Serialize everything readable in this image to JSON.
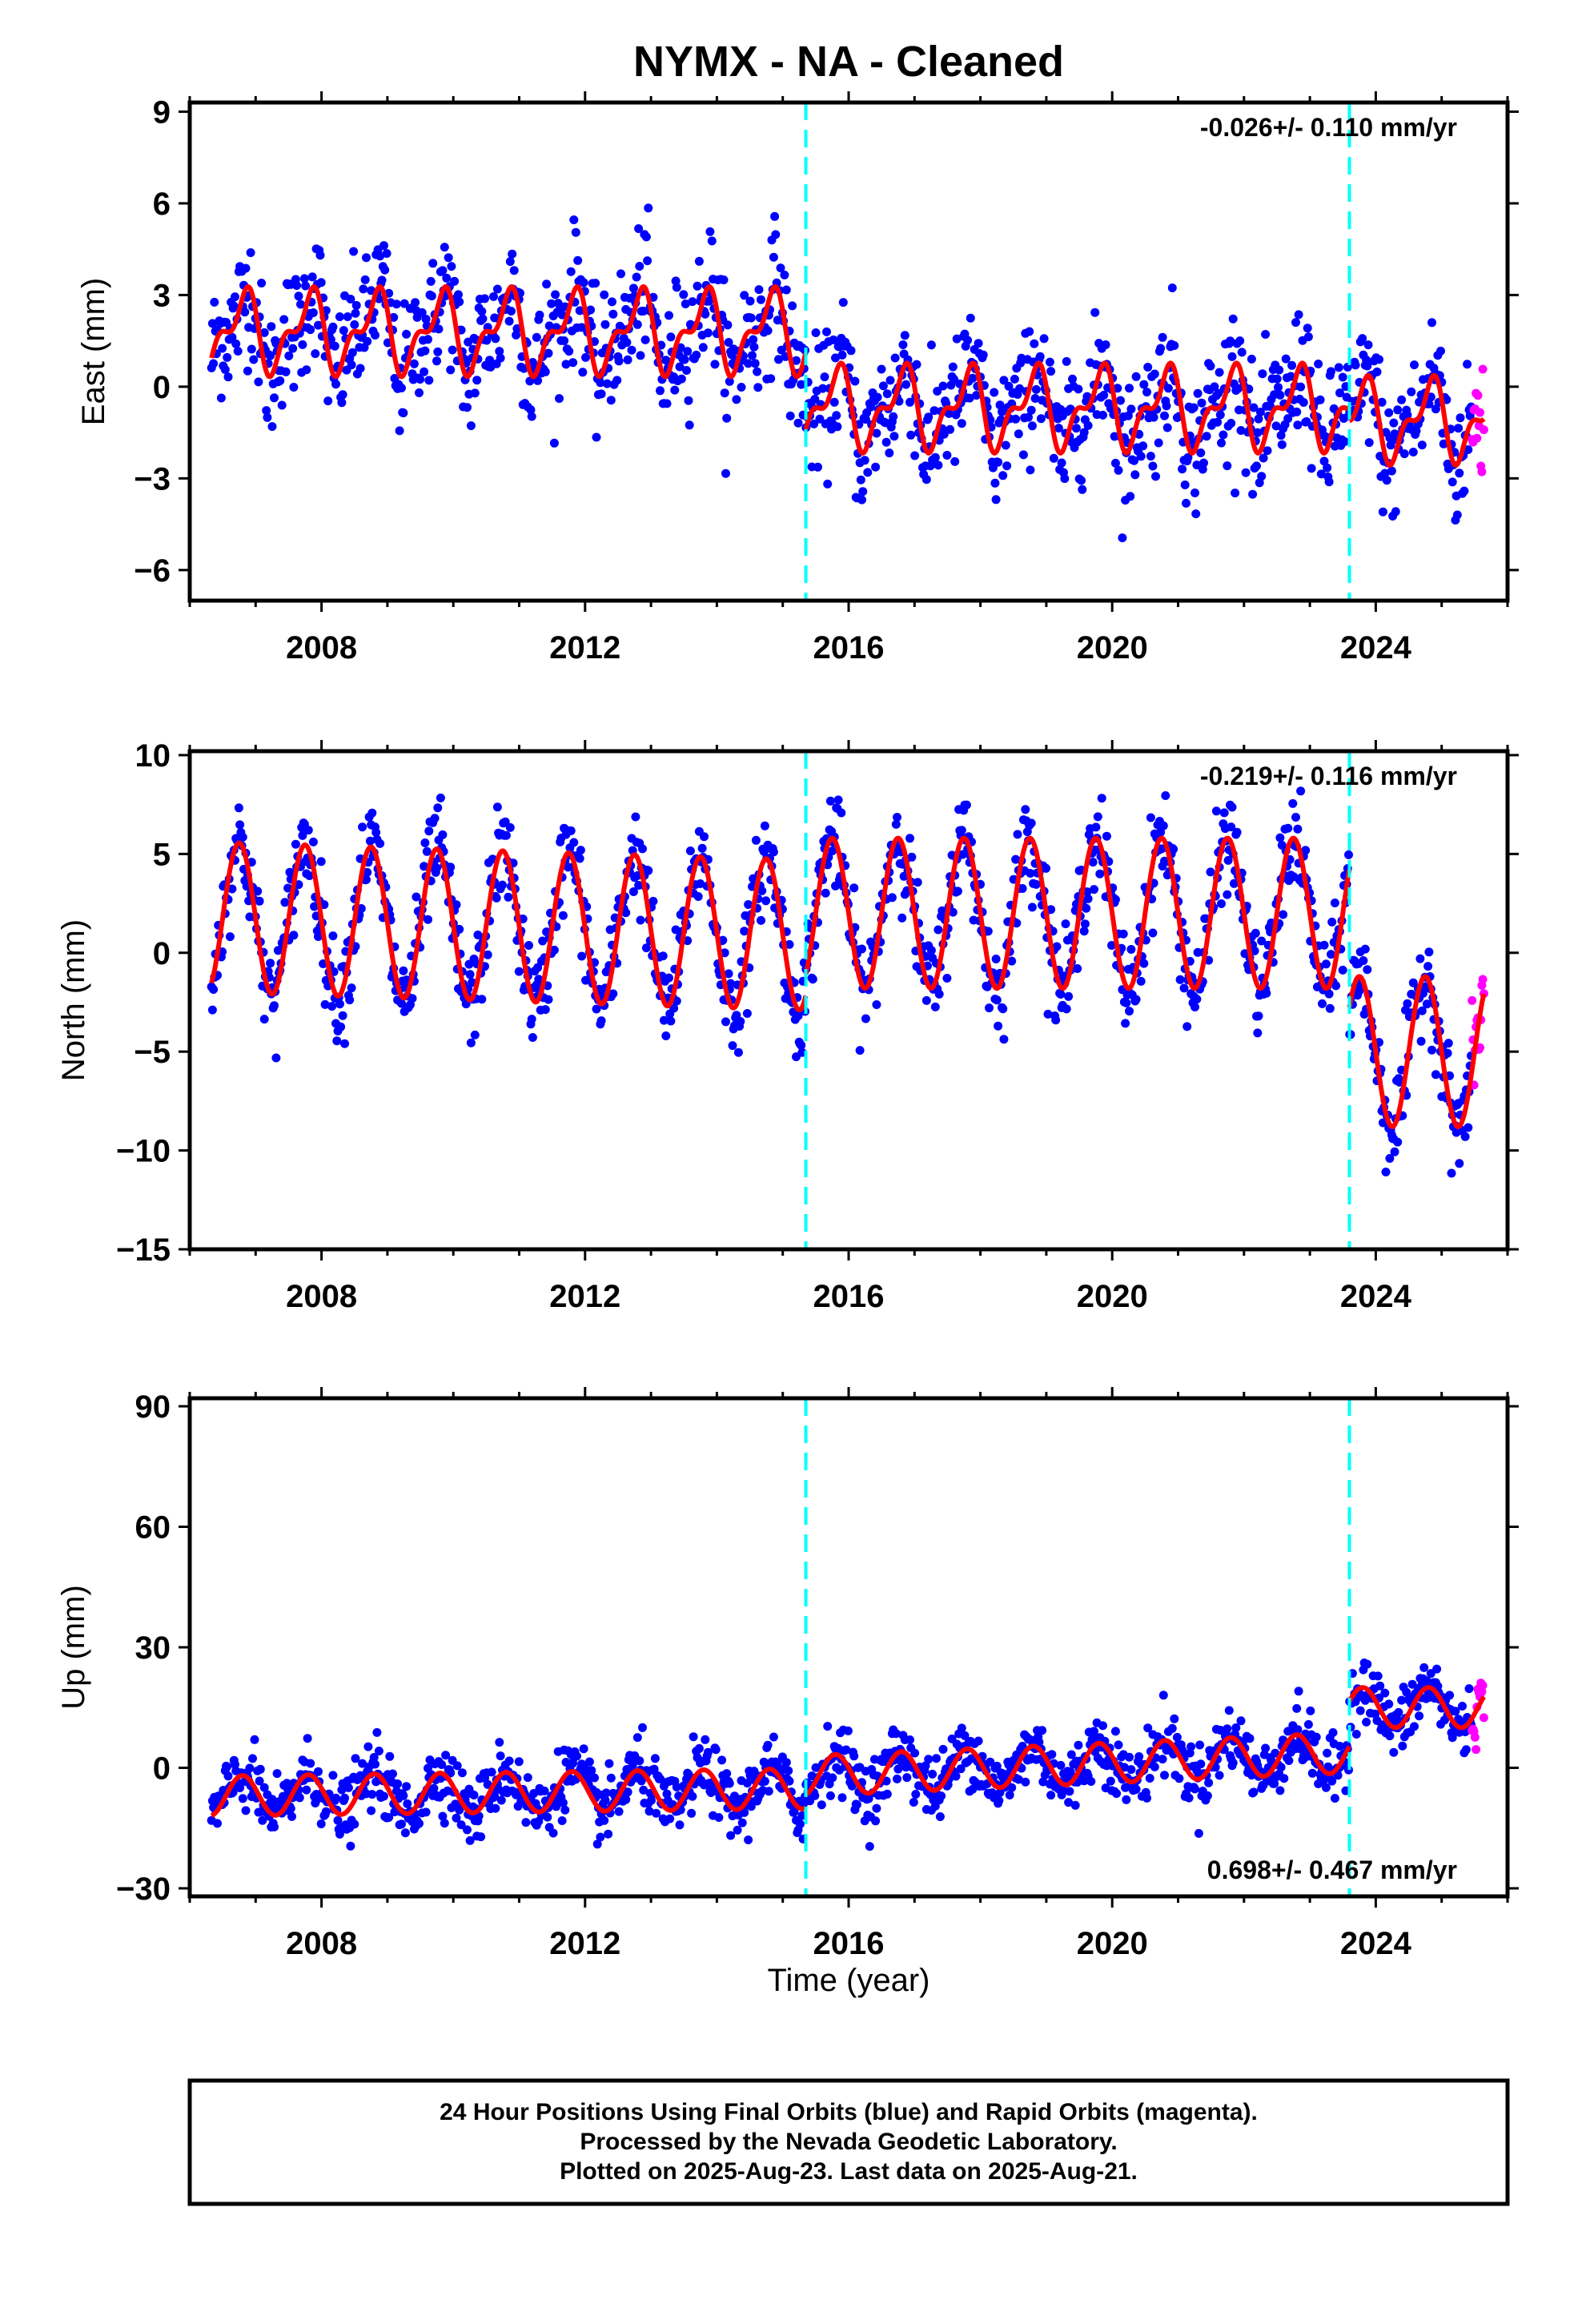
{
  "title": "NYMX  - NA - Cleaned",
  "xlabel": "Time (year)",
  "footer": {
    "line1": "24 Hour Positions Using Final Orbits (blue) and Rapid Orbits (magenta).",
    "line2": "Processed by the Nevada Geodetic Laboratory.",
    "line3": "Plotted on 2025-Aug-23. Last data on 2025-Aug-21."
  },
  "colors": {
    "final_orbits": "#0000ff",
    "rapid_orbits": "#ff00ff",
    "model": "#ff0000",
    "steps": "#00ffff"
  },
  "chart_data": [
    {
      "type": "scatter",
      "ylabel": "East (mm)",
      "rate_text": "-0.026+/- 0.110 mm/yr",
      "rate_position": "top-right",
      "xlim": [
        2006.0,
        2026.0
      ],
      "ylim": [
        -7,
        9.3
      ],
      "x_ticks": [
        2008,
        2012,
        2016,
        2020,
        2024
      ],
      "y_ticks": [
        9,
        6,
        3,
        0,
        -3,
        -6
      ],
      "y_tick_labels": [
        "9",
        "6",
        "3",
        "0",
        "−3",
        "−6"
      ],
      "steps": [
        2015.35,
        2023.6
      ],
      "data_span": [
        2006.33,
        2025.64
      ],
      "rapid_span": [
        2025.45,
        2025.64
      ],
      "model": {
        "segments": [
          {
            "from": 2006.33,
            "to": 2015.35,
            "offset": 1.8
          },
          {
            "from": 2015.35,
            "to": 2023.6,
            "offset": -0.7
          },
          {
            "from": 2023.6,
            "to": 2025.64,
            "offset": -1.1
          }
        ],
        "annual_amp": 1.1,
        "annual_phase": 0.55,
        "semiannual_amp": 0.6,
        "semiannual_phase": 0.3,
        "scatter_sd": 1.05
      }
    },
    {
      "type": "scatter",
      "ylabel": "North (mm)",
      "rate_text": "-0.219+/- 0.116 mm/yr",
      "rate_position": "top-right",
      "xlim": [
        2006.0,
        2026.0
      ],
      "ylim": [
        -15,
        10.2
      ],
      "x_ticks": [
        2008,
        2012,
        2016,
        2020,
        2024
      ],
      "y_ticks": [
        10,
        5,
        0,
        -5,
        -10,
        -15
      ],
      "y_tick_labels": [
        "10",
        "5",
        "0",
        "−5",
        "−10",
        "−15"
      ],
      "steps": [
        2015.35,
        2023.6
      ],
      "data_span": [
        2006.33,
        2025.64
      ],
      "rapid_span": [
        2025.45,
        2025.64
      ],
      "model": {
        "segments": [
          {
            "from": 2006.33,
            "to": 2015.35,
            "offset": 1.8,
            "slope": -0.1
          },
          {
            "from": 2015.35,
            "to": 2023.6,
            "offset": 2.0,
            "slope": 0.0
          },
          {
            "from": 2023.6,
            "to": 2025.64,
            "offset": -5.0,
            "slope": 0.0
          }
        ],
        "annual_amp": 3.8,
        "annual_phase": 0.5,
        "semiannual_amp": 0.0,
        "semiannual_phase": 0.0,
        "scatter_sd": 1.2
      }
    },
    {
      "type": "scatter",
      "ylabel": "Up (mm)",
      "rate_text": "0.698+/- 0.467 mm/yr",
      "rate_position": "bottom-right",
      "xlim": [
        2006.0,
        2026.0
      ],
      "ylim": [
        -32,
        92
      ],
      "x_ticks": [
        2008,
        2012,
        2016,
        2020,
        2024
      ],
      "y_ticks": [
        90,
        60,
        30,
        0,
        -30
      ],
      "y_tick_labels": [
        "90",
        "60",
        "30",
        "0",
        "−30"
      ],
      "steps": [
        2015.35,
        2023.6
      ],
      "data_span": [
        2006.33,
        2025.64
      ],
      "rapid_span": [
        2025.45,
        2025.64
      ],
      "model": {
        "segments": [
          {
            "from": 2006.33,
            "to": 2015.35,
            "offset": -7.0,
            "slope": 0.2
          },
          {
            "from": 2015.35,
            "to": 2023.6,
            "offset": -2.0,
            "slope": 0.7
          },
          {
            "from": 2023.6,
            "to": 2025.64,
            "offset": 15.0,
            "slope": 0.0
          }
        ],
        "annual_amp": 5.0,
        "annual_phase": 0.55,
        "semiannual_amp": 0.0,
        "semiannual_phase": 0.0,
        "scatter_sd": 4.0
      }
    }
  ]
}
